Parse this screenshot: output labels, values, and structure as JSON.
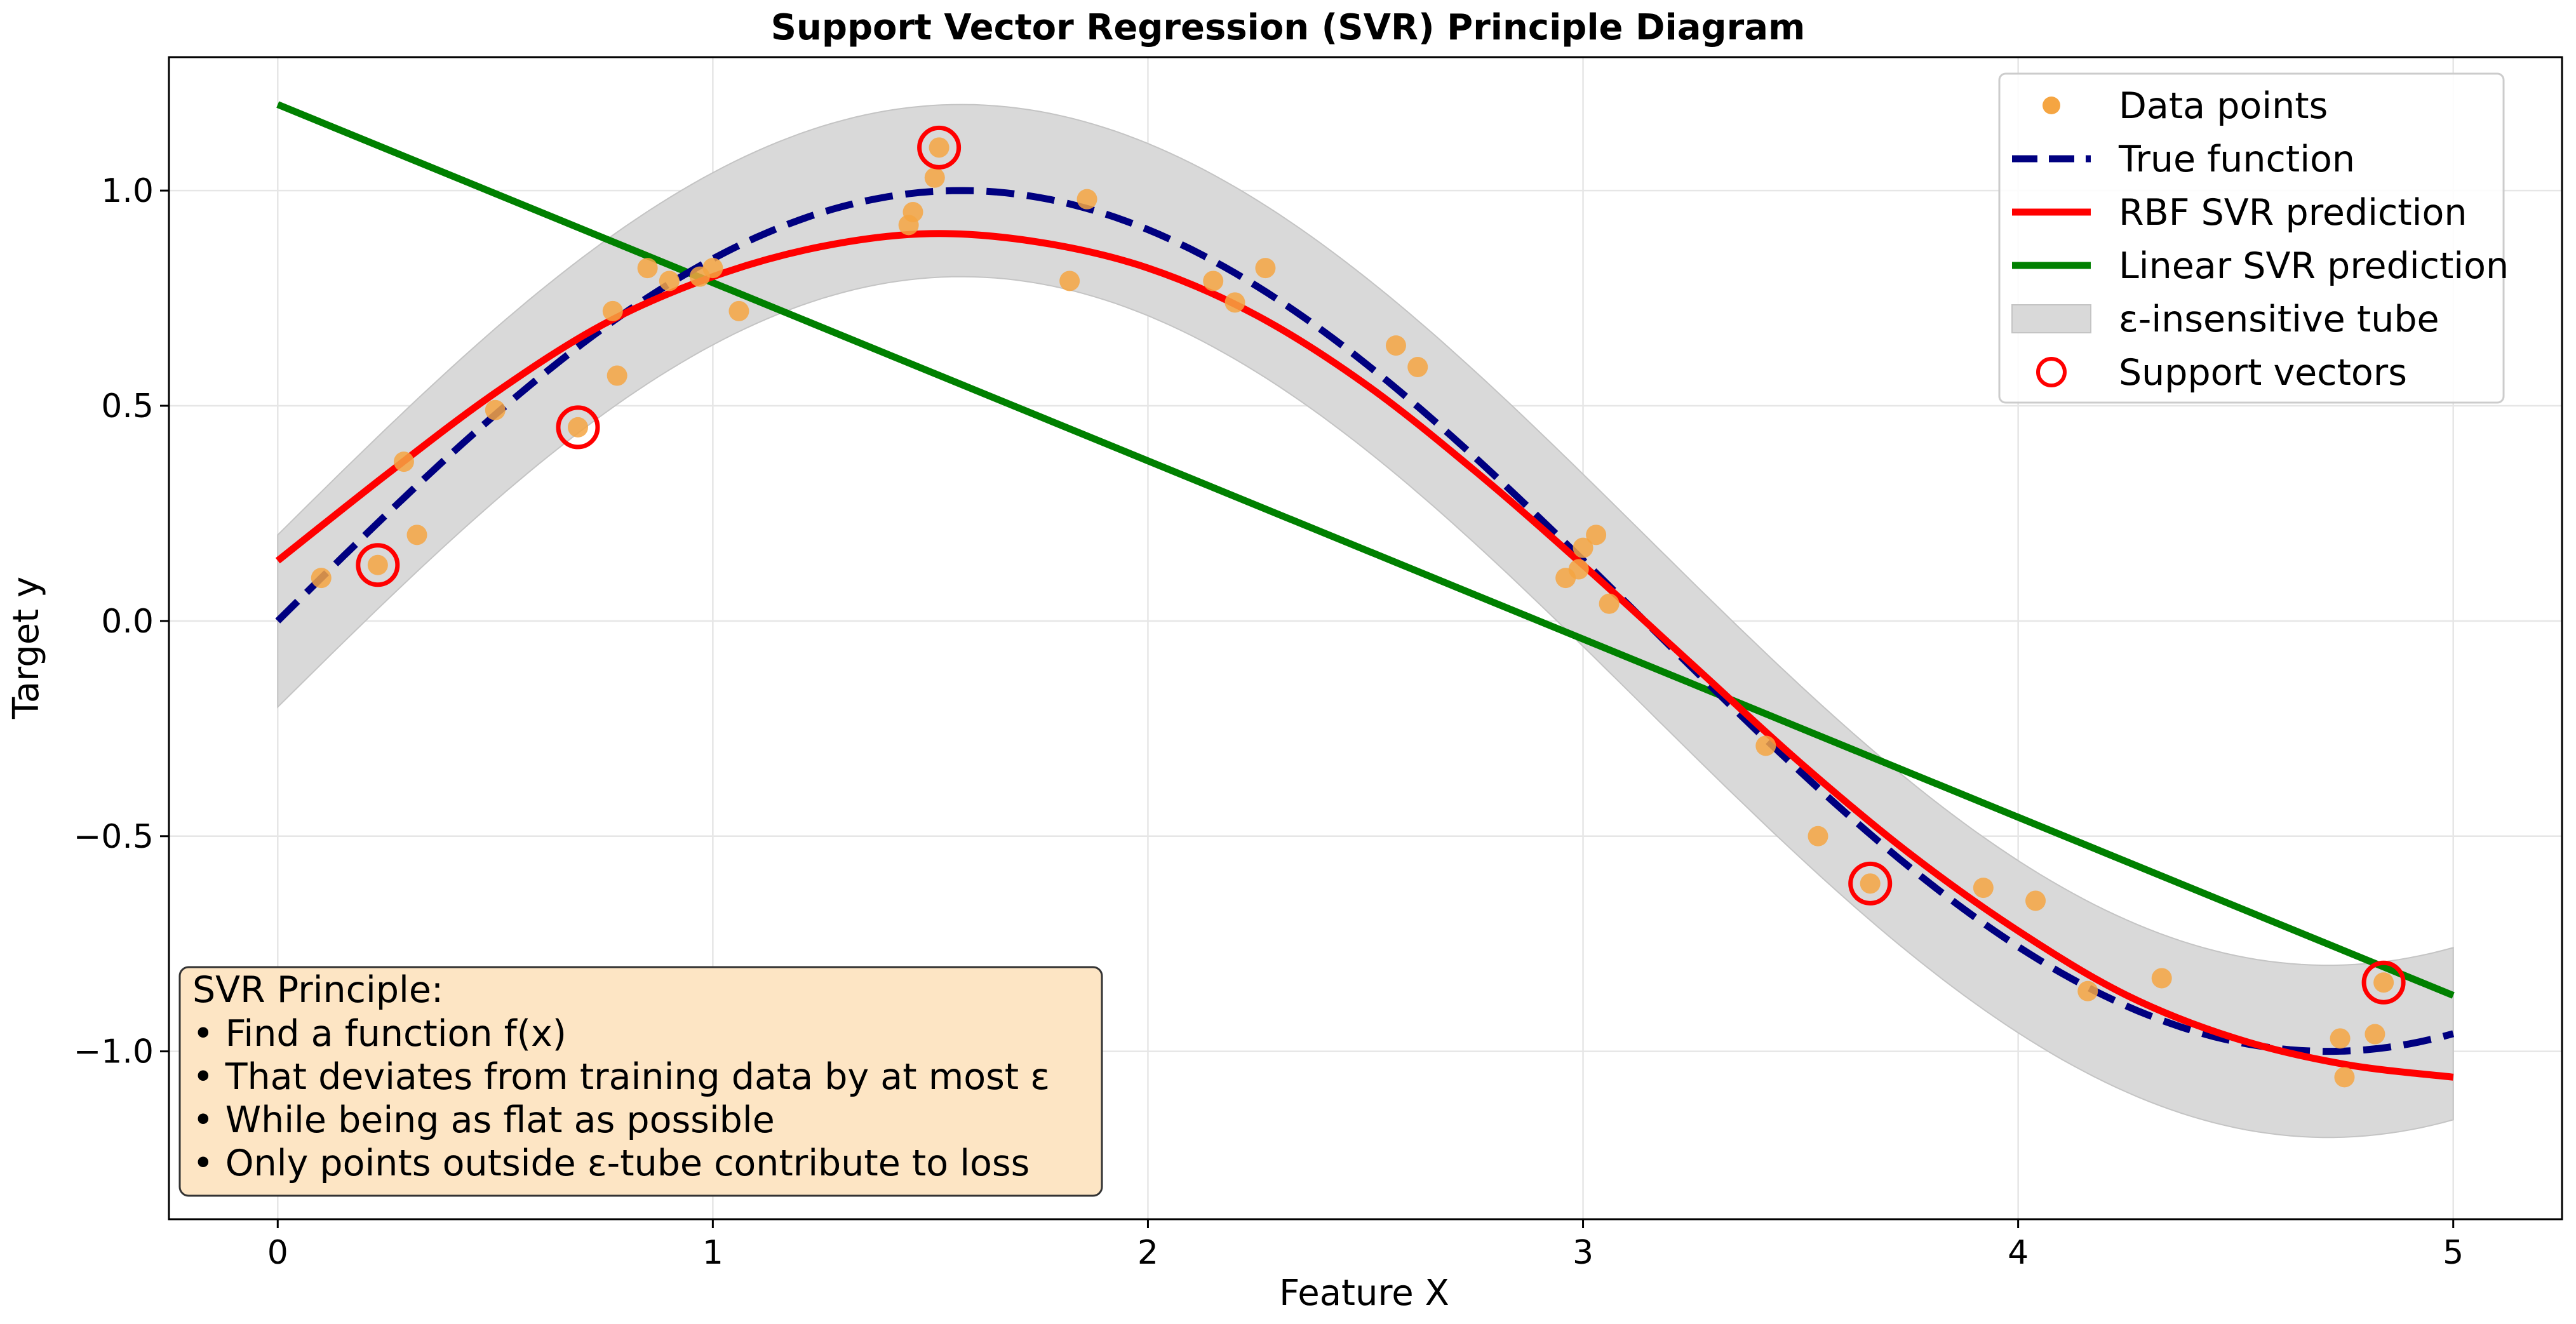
{
  "chart_data": {
    "type": "scatter",
    "title": "Support Vector Regression (SVR) Principle Diagram",
    "xlabel": "Feature X",
    "ylabel": "Target y",
    "xlim": [
      -0.25,
      5.25
    ],
    "ylim": [
      -1.39,
      1.31
    ],
    "grid": true,
    "x_ticks": [
      0,
      1,
      2,
      3,
      4,
      5
    ],
    "x_tick_labels": [
      "0",
      "1",
      "2",
      "3",
      "4",
      "5"
    ],
    "y_ticks": [
      -1.0,
      -0.5,
      0.0,
      0.5,
      1.0
    ],
    "y_tick_labels": [
      "−1.0",
      "−0.5",
      "0.0",
      "0.5",
      "1.0"
    ],
    "epsilon": 0.2,
    "legend_position": "top-right",
    "series": [
      {
        "name": "True function",
        "kind": "line",
        "style": "dashed",
        "color": "#000080",
        "x": [
          0,
          0.25,
          0.5,
          0.75,
          1.0,
          1.25,
          1.5,
          1.75,
          2.0,
          2.25,
          2.5,
          2.75,
          3.0,
          3.25,
          3.5,
          3.75,
          4.0,
          4.25,
          4.5,
          4.75,
          5.0
        ],
        "y": [
          0.0,
          0.247,
          0.479,
          0.682,
          0.841,
          0.949,
          0.997,
          0.984,
          0.909,
          0.778,
          0.598,
          0.382,
          0.141,
          -0.108,
          -0.351,
          -0.572,
          -0.757,
          -0.895,
          -0.978,
          -0.999,
          -0.959
        ]
      },
      {
        "name": "RBF SVR prediction",
        "kind": "line",
        "style": "solid",
        "color": "#ff0000",
        "x": [
          0,
          0.25,
          0.5,
          0.75,
          1.0,
          1.25,
          1.5,
          1.75,
          2.0,
          2.25,
          2.5,
          2.75,
          3.0,
          3.25,
          3.5,
          3.75,
          4.0,
          4.25,
          4.5,
          4.75,
          5.0
        ],
        "y": [
          0.14,
          0.34,
          0.53,
          0.69,
          0.8,
          0.87,
          0.9,
          0.88,
          0.82,
          0.71,
          0.55,
          0.35,
          0.13,
          -0.1,
          -0.33,
          -0.54,
          -0.72,
          -0.87,
          -0.97,
          -1.03,
          -1.06
        ]
      },
      {
        "name": "Linear SVR prediction",
        "kind": "line",
        "style": "solid",
        "color": "#008000",
        "x": [
          0,
          5
        ],
        "y": [
          1.2,
          -0.87
        ]
      },
      {
        "name": "ε-insensitive tube",
        "kind": "band",
        "color": "#d9d9d9",
        "description_of_center": "True function ± epsilon"
      },
      {
        "name": "Data points",
        "kind": "scatter",
        "color": "#f5a542",
        "x": [
          0.1,
          0.23,
          0.29,
          0.32,
          0.5,
          0.69,
          0.77,
          0.78,
          0.85,
          0.9,
          0.97,
          1.0,
          1.06,
          1.45,
          1.46,
          1.51,
          1.52,
          1.82,
          1.86,
          2.15,
          2.2,
          2.27,
          2.57,
          2.62,
          2.96,
          2.99,
          3.0,
          3.03,
          3.06,
          3.42,
          3.54,
          3.66,
          3.92,
          4.04,
          4.16,
          4.33,
          4.74,
          4.75,
          4.82,
          4.84
        ],
        "y": [
          0.1,
          0.13,
          0.37,
          0.2,
          0.49,
          0.45,
          0.72,
          0.57,
          0.82,
          0.79,
          0.8,
          0.82,
          0.72,
          0.92,
          0.95,
          1.03,
          1.1,
          0.79,
          0.98,
          0.79,
          0.74,
          0.82,
          0.64,
          0.59,
          0.1,
          0.12,
          0.17,
          0.2,
          0.04,
          -0.29,
          -0.5,
          -0.61,
          -0.62,
          -0.65,
          -0.86,
          -0.83,
          -0.97,
          -1.06,
          -0.96,
          -0.84
        ]
      },
      {
        "name": "Support vectors",
        "kind": "scatter",
        "marker": "hollow-circle",
        "color": "#ff0000",
        "x": [
          0.23,
          0.69,
          1.52,
          3.66,
          4.84
        ],
        "y": [
          0.13,
          0.45,
          1.1,
          -0.61,
          -0.84
        ]
      }
    ],
    "legend": [
      "Data points",
      "True function",
      "RBF SVR prediction",
      "Linear SVR prediction",
      "ε-insensitive tube",
      "Support vectors"
    ],
    "annotation": {
      "heading": "SVR Principle:",
      "lines": [
        "• Find a function f(x)",
        "• That deviates from training data by at most ε",
        "• While being as flat as possible",
        "• Only points outside ε-tube contribute to loss"
      ],
      "box_color": "#fde5c4",
      "position": "bottom-left"
    }
  }
}
